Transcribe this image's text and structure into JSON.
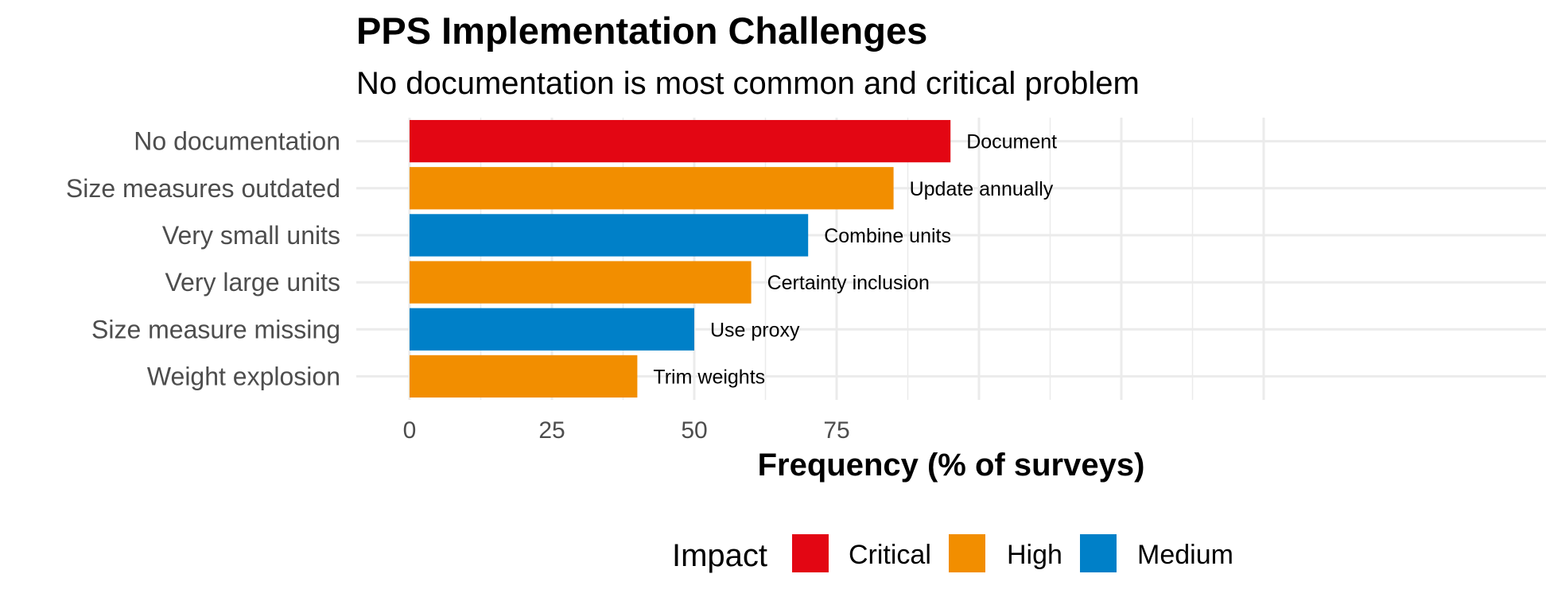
{
  "chart_data": {
    "type": "bar",
    "orientation": "horizontal",
    "title": "PPS Implementation Challenges",
    "subtitle": "No documentation is most common and critical problem",
    "xlabel": "Frequency (% of surveys)",
    "ylabel": "",
    "xlim": [
      -4.7,
      100
    ],
    "x_ticks": [
      0,
      25,
      50,
      75
    ],
    "grid": true,
    "categories": [
      "No documentation",
      "Size measures outdated",
      "Very small units",
      "Very large units",
      "Size measure missing",
      "Weight explosion"
    ],
    "values": [
      95,
      85,
      70,
      60,
      50,
      40
    ],
    "impact": [
      "Critical",
      "High",
      "Medium",
      "High",
      "Medium",
      "High"
    ],
    "bar_labels": [
      "Document",
      "Update annually",
      "Combine units",
      "Certainty inclusion",
      "Use proxy",
      "Trim weights"
    ],
    "legend": {
      "title": "Impact",
      "position": "bottom",
      "entries": [
        {
          "label": "Critical",
          "color": "#E30613"
        },
        {
          "label": "High",
          "color": "#F28E00"
        },
        {
          "label": "Medium",
          "color": "#0080C8"
        }
      ]
    }
  }
}
